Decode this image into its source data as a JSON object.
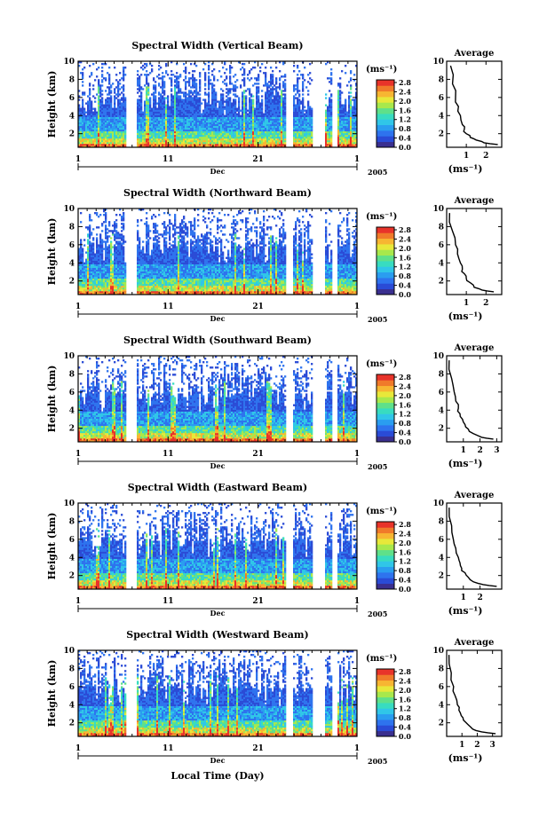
{
  "figure": {
    "xlabel_bottom": "Local Time (Day)",
    "month_label": "Dec",
    "year_label": "2005",
    "ylabel": "Height (km)",
    "colorbar_unit": "(ms⁻¹)",
    "colorbar_ticks": [
      "0.0",
      "0.4",
      "0.8",
      "1.2",
      "1.6",
      "2.0",
      "2.4",
      "2.8"
    ],
    "avg_title": "Average",
    "avg_xlabel": "(ms⁻¹)",
    "colors": {
      "scale": [
        "#3a2f8f",
        "#2a4bd6",
        "#2e73ee",
        "#2a9df0",
        "#30c6e8",
        "#38dcc0",
        "#5fe08a",
        "#a8e84c",
        "#e8e83a",
        "#f7b632",
        "#f07a2a",
        "#e8332a"
      ]
    }
  },
  "chart_data": [
    {
      "type": "heatmap",
      "title": "Spectral Width (Vertical Beam)",
      "xlabel": "Local Time (Day)",
      "ylabel": "Height (km)",
      "x_ticks": [
        "1",
        "11",
        "21",
        "1"
      ],
      "y_ticks": [
        2,
        4,
        6,
        8,
        10
      ],
      "ylim": [
        0.5,
        10
      ],
      "colorbar_range": [
        0.0,
        2.8
      ],
      "average_profile": {
        "x": [
          2.6,
          1.9,
          1.5,
          1.2,
          1.0,
          0.9,
          0.8,
          0.7,
          0.6,
          0.45,
          0.3,
          0.2
        ],
        "y": [
          0.8,
          1.0,
          1.3,
          1.6,
          2.0,
          2.5,
          3.0,
          4.0,
          5.0,
          6.0,
          7.5,
          9.5
        ],
        "xticks": [
          1,
          2
        ],
        "xlim": [
          0,
          2.8
        ]
      }
    },
    {
      "type": "heatmap",
      "title": "Spectral Width (Northward Beam)",
      "xlabel": "Local Time (Day)",
      "ylabel": "Height (km)",
      "x_ticks": [
        "1",
        "11",
        "21",
        "1"
      ],
      "y_ticks": [
        2,
        4,
        6,
        8,
        10
      ],
      "ylim": [
        0.5,
        10
      ],
      "colorbar_range": [
        0.0,
        2.8
      ],
      "average_profile": {
        "x": [
          2.4,
          1.8,
          1.4,
          1.2,
          1.0,
          0.9,
          0.8,
          0.7,
          0.55,
          0.45,
          0.3,
          0.15
        ],
        "y": [
          0.8,
          1.0,
          1.3,
          1.8,
          2.3,
          2.8,
          3.3,
          4.0,
          5.0,
          6.0,
          7.5,
          9.5
        ],
        "xticks": [
          1,
          2
        ],
        "xlim": [
          0,
          2.8
        ]
      }
    },
    {
      "type": "heatmap",
      "title": "Spectral Width (Southward Beam)",
      "xlabel": "Local Time (Day)",
      "ylabel": "Height (km)",
      "x_ticks": [
        "1",
        "11",
        "21",
        "1"
      ],
      "y_ticks": [
        2,
        4,
        6,
        8,
        10
      ],
      "ylim": [
        0.5,
        10
      ],
      "colorbar_range": [
        0.0,
        2.8
      ],
      "average_profile": {
        "x": [
          2.8,
          2.1,
          1.6,
          1.3,
          1.1,
          0.95,
          0.8,
          0.7,
          0.55,
          0.45,
          0.3,
          0.15
        ],
        "y": [
          0.8,
          1.0,
          1.4,
          1.9,
          2.4,
          3.0,
          3.6,
          4.2,
          5.0,
          6.0,
          7.5,
          9.5
        ],
        "xticks": [
          1,
          2,
          3
        ],
        "xlim": [
          0,
          3.3
        ]
      }
    },
    {
      "type": "heatmap",
      "title": "Spectral Width (Eastward Beam)",
      "xlabel": "Local Time (Day)",
      "ylabel": "Height (km)",
      "x_ticks": [
        "1",
        "11",
        "21",
        "1"
      ],
      "y_ticks": [
        2,
        4,
        6,
        8,
        10
      ],
      "ylim": [
        0.5,
        10
      ],
      "colorbar_range": [
        0.0,
        2.8
      ],
      "average_profile": {
        "x": [
          3.0,
          2.2,
          1.6,
          1.3,
          1.1,
          0.9,
          0.8,
          0.7,
          0.55,
          0.4,
          0.3,
          0.15
        ],
        "y": [
          0.8,
          1.0,
          1.3,
          1.8,
          2.3,
          2.8,
          3.4,
          4.0,
          5.0,
          6.0,
          7.5,
          9.5
        ],
        "xticks": [
          1,
          2
        ],
        "xlim": [
          0,
          3.3
        ]
      }
    },
    {
      "type": "heatmap",
      "title": "Spectral Width (Westward Beam)",
      "xlabel": "Local Time (Day)",
      "ylabel": "Height (km)",
      "x_ticks": [
        "1",
        "11",
        "21",
        "1"
      ],
      "y_ticks": [
        2,
        4,
        6,
        8,
        10
      ],
      "ylim": [
        0.5,
        10
      ],
      "colorbar_range": [
        0.0,
        2.8
      ],
      "average_profile": {
        "x": [
          3.2,
          2.3,
          1.7,
          1.4,
          1.1,
          0.95,
          0.8,
          0.7,
          0.55,
          0.45,
          0.3,
          0.15
        ],
        "y": [
          0.8,
          1.0,
          1.3,
          1.8,
          2.3,
          2.8,
          3.4,
          4.0,
          5.0,
          6.0,
          7.5,
          9.5
        ],
        "xticks": [
          1,
          2,
          3
        ],
        "xlim": [
          0,
          3.6
        ]
      }
    }
  ]
}
